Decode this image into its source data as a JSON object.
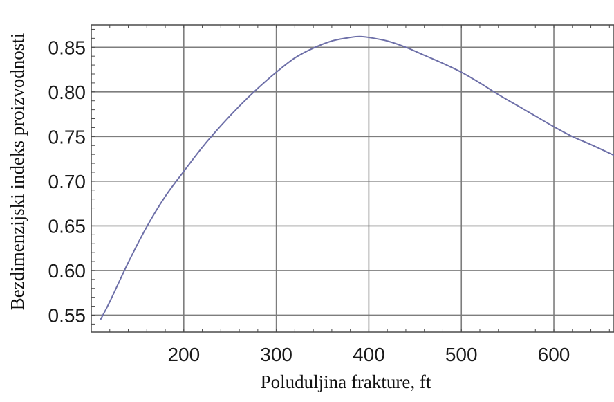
{
  "chart_data": {
    "type": "line",
    "title": "",
    "xlabel": "Poluduljina frakture, ft",
    "ylabel": "Bezdimenzijski indeks proizvodnosti",
    "xlim": [
      100,
      665
    ],
    "ylim": [
      0.531,
      0.875
    ],
    "x_ticks": [
      200,
      300,
      400,
      500,
      600
    ],
    "y_ticks": [
      0.55,
      0.6,
      0.65,
      0.7,
      0.75,
      0.8,
      0.85
    ],
    "x_tick_labels": [
      "200",
      "300",
      "400",
      "500",
      "600"
    ],
    "y_tick_labels": [
      "0.55",
      "0.60",
      "0.65",
      "0.70",
      "0.75",
      "0.80",
      "0.85"
    ],
    "grid": true,
    "legend": "none",
    "colors": {
      "line": "#6d6fa8",
      "grid": "#7d7d7d",
      "frame": "#4a4a4a",
      "text": "#1a1a1a"
    },
    "series": [
      {
        "x": [
          110,
          120,
          140,
          160,
          180,
          200,
          220,
          240,
          260,
          280,
          300,
          320,
          340,
          360,
          380,
          390,
          400,
          420,
          440,
          460,
          480,
          500,
          520,
          540,
          560,
          580,
          600,
          620,
          640,
          665
        ],
        "y": [
          0.545,
          0.565,
          0.609,
          0.649,
          0.683,
          0.711,
          0.738,
          0.762,
          0.784,
          0.804,
          0.822,
          0.838,
          0.849,
          0.857,
          0.861,
          0.862,
          0.861,
          0.857,
          0.85,
          0.841,
          0.832,
          0.822,
          0.81,
          0.797,
          0.785,
          0.773,
          0.761,
          0.75,
          0.741,
          0.729
        ]
      }
    ]
  }
}
